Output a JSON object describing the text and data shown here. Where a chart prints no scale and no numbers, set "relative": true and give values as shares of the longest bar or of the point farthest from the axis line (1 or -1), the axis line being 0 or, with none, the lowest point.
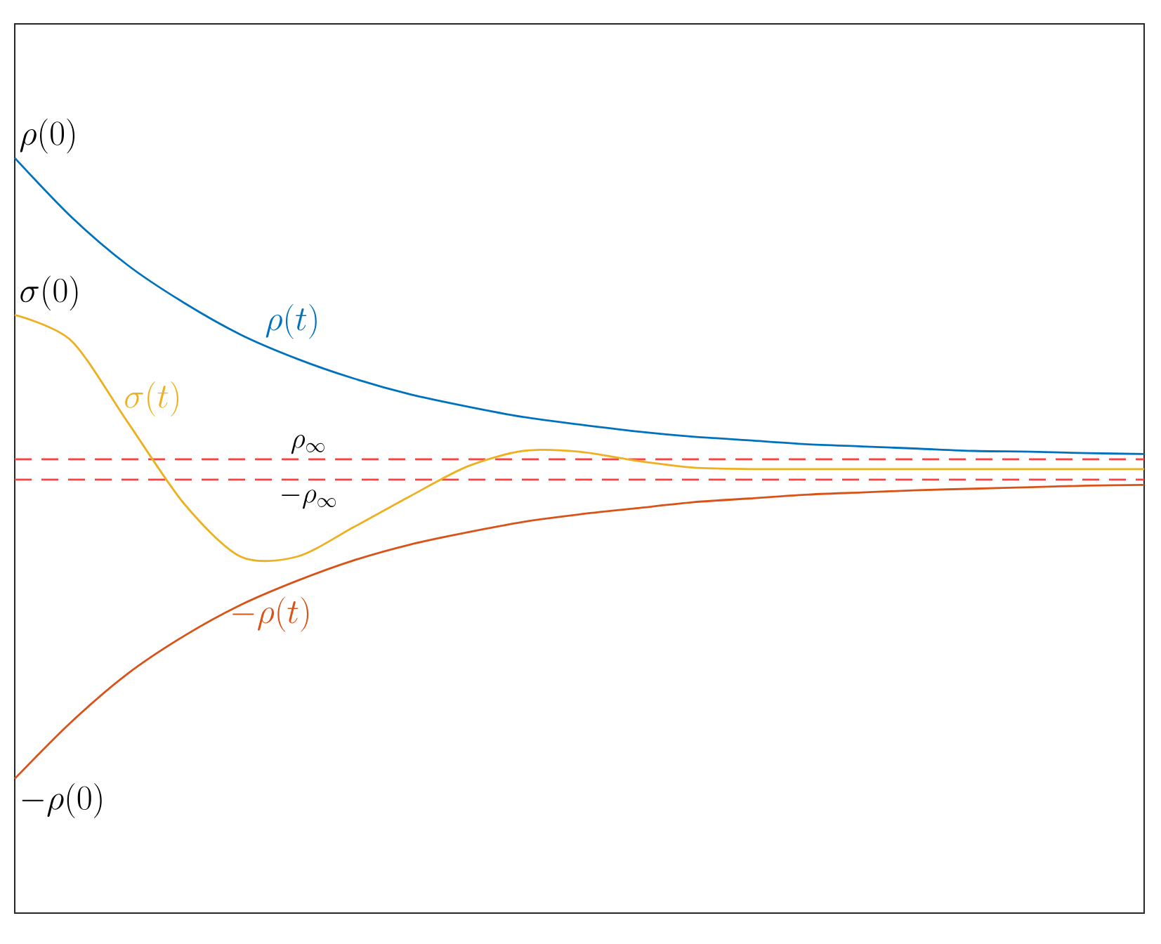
{
  "chart_data": {
    "type": "line",
    "relative": true,
    "legend": false,
    "categories": [
      null,
      null,
      null,
      null,
      null,
      null,
      null,
      null,
      null,
      null,
      null,
      null,
      null,
      null,
      null,
      null,
      null,
      null,
      null,
      null,
      null
    ],
    "series": [
      {
        "name": "\\rho(t)",
        "color": "#0072bd",
        "values": [
          1.0,
          0.922,
          0.858,
          0.808,
          0.766,
          0.734,
          0.708,
          0.687,
          0.671,
          0.657,
          0.647,
          0.638,
          0.631,
          0.626,
          0.621,
          0.618,
          0.615,
          0.612,
          0.611,
          0.609,
          0.608
        ]
      },
      {
        "name": "\\sigma(t)",
        "color": "#edb120",
        "values": [
          0.792,
          0.758,
          0.65,
          0.542,
          0.472,
          0.472,
          0.511,
          0.552,
          0.591,
          0.612,
          0.611,
          0.599,
          0.59,
          0.588,
          0.588,
          0.588,
          0.588,
          0.588,
          0.588,
          0.588,
          0.588
        ]
      },
      {
        "name": "-\\rho(t)",
        "color": "#d95319",
        "values": [
          0.178,
          0.253,
          0.317,
          0.367,
          0.408,
          0.44,
          0.467,
          0.488,
          0.504,
          0.518,
          0.528,
          0.536,
          0.544,
          0.549,
          0.554,
          0.557,
          0.56,
          0.562,
          0.564,
          0.566,
          0.567
        ]
      }
    ],
    "ref_lines": [
      {
        "axis": "y",
        "value": 0.601,
        "label": "\\rho_\\infty",
        "color": "#ff4040",
        "line_style": "dashed"
      },
      {
        "axis": "y",
        "value": 0.574,
        "label": "-\\rho_\\infty",
        "color": "#ff4040",
        "line_style": "dashed"
      }
    ],
    "annotations": [
      "\\rho(0)",
      "\\sigma(0)",
      "-\\rho(0)"
    ]
  }
}
